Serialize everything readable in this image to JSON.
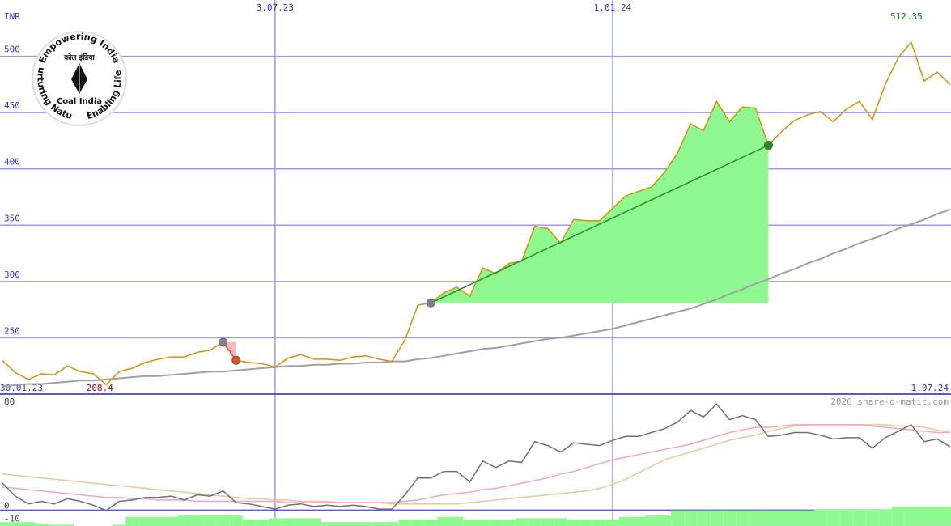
{
  "logo": {
    "top": "Empowering India",
    "right": "Enabling Life",
    "left": "Nurturing Nature",
    "name": "Coal India",
    "name_hindi": "कोल इंडिया"
  },
  "watermark": "2026 share-o-matic.com",
  "chart_data": [
    {
      "type": "line",
      "y_label": "INR",
      "categories": [
        "30.01.23",
        null,
        null,
        null,
        null,
        null,
        null,
        null,
        null,
        null,
        null,
        null,
        null,
        null,
        null,
        null,
        null,
        null,
        null,
        null,
        null,
        "3.07.23",
        null,
        null,
        null,
        null,
        null,
        null,
        null,
        null,
        null,
        null,
        null,
        null,
        null,
        null,
        null,
        null,
        null,
        null,
        null,
        null,
        null,
        null,
        null,
        null,
        null,
        "1.01.24",
        null,
        null,
        null,
        null,
        null,
        null,
        null,
        null,
        null,
        null,
        null,
        null,
        null,
        null,
        null,
        null,
        null,
        null,
        null,
        null,
        null,
        null,
        null,
        null,
        null,
        "1.07.24"
      ],
      "ylim": [
        200,
        550
      ],
      "yticks": [
        250,
        300,
        350,
        400,
        450,
        500
      ],
      "grid": true,
      "high_color": "#008000",
      "low_color": "#c00000",
      "series": [
        {
          "color": "#d4900a",
          "values": [
            230,
            219,
            213,
            218,
            217,
            225,
            220,
            218,
            208.4,
            220,
            223,
            228,
            231,
            233,
            233,
            237,
            239,
            246,
            230,
            228,
            227,
            224,
            232,
            235,
            231,
            231,
            230,
            233,
            234,
            231,
            229,
            248,
            279,
            281,
            290,
            295,
            287,
            312,
            307,
            316,
            318,
            349,
            347,
            334,
            355,
            354,
            354,
            365,
            376,
            380,
            384,
            397,
            414,
            440,
            434,
            460,
            442,
            455,
            454,
            421,
            433,
            443,
            448,
            451,
            442,
            453,
            460,
            444,
            475,
            499,
            512.35,
            478,
            486,
            475
          ]
        },
        {
          "color": "#a0a0a0",
          "values": [
            207,
            208,
            209,
            209,
            210,
            211,
            212,
            212,
            213,
            214,
            215,
            216,
            216,
            217,
            218,
            219,
            220,
            220,
            221,
            222,
            223,
            224,
            225,
            225,
            226,
            226,
            227,
            227,
            228,
            228,
            229,
            229,
            231,
            232,
            234,
            236,
            238,
            240,
            241,
            243,
            245,
            247,
            249,
            250,
            252,
            254,
            256,
            258,
            261,
            264,
            267,
            270,
            273,
            276,
            280,
            284,
            289,
            293,
            298,
            302,
            307,
            311,
            316,
            320,
            325,
            329,
            334,
            338,
            342,
            347,
            351,
            355,
            360,
            364
          ]
        }
      ],
      "trends": [
        {
          "color": "#e05020",
          "fill": "#ffb6c1",
          "values": [
            null,
            null,
            null,
            null,
            null,
            null,
            null,
            null,
            null,
            null,
            null,
            null,
            null,
            null,
            null,
            null,
            null,
            246,
            230,
            null,
            null,
            null,
            null,
            null,
            null,
            null,
            null,
            null,
            null,
            null,
            null,
            null,
            null,
            null,
            null,
            null,
            null,
            null,
            null,
            null,
            null,
            null,
            null,
            null,
            null,
            null,
            null,
            null,
            null,
            null,
            null,
            null,
            null,
            null,
            null,
            null,
            null,
            null,
            null,
            null,
            null,
            null,
            null,
            null,
            null,
            null,
            null,
            null,
            null,
            null,
            null,
            null,
            null,
            null
          ]
        },
        {
          "color": "#209020",
          "fill": "#90f890",
          "values": [
            null,
            null,
            null,
            null,
            null,
            null,
            null,
            null,
            null,
            null,
            null,
            null,
            null,
            null,
            null,
            null,
            null,
            null,
            null,
            null,
            null,
            null,
            null,
            null,
            null,
            null,
            null,
            null,
            null,
            null,
            null,
            null,
            null,
            281,
            null,
            null,
            null,
            null,
            null,
            null,
            null,
            null,
            null,
            null,
            null,
            null,
            null,
            null,
            null,
            null,
            null,
            null,
            null,
            null,
            null,
            null,
            null,
            null,
            null,
            421,
            null,
            null,
            null,
            null,
            null,
            null,
            null,
            null,
            null,
            null,
            null,
            null,
            null,
            null
          ]
        }
      ]
    },
    {
      "type": "line",
      "ylim": [
        -16,
        85
      ],
      "yticks": [
        80,
        0,
        -10
      ],
      "series": [
        {
          "type": "bar",
          "color": "#90f890",
          "values": [
            -13,
            -13,
            -13,
            -14,
            -15,
            -15,
            -16,
            -16,
            -16,
            -15,
            -9,
            -9,
            -9,
            -9,
            -8,
            -8,
            -8,
            -8,
            -8,
            -11,
            -11,
            -10,
            -10,
            -10,
            -10,
            -13,
            -13,
            -13,
            -13,
            -13,
            -13,
            -11,
            -11,
            -11,
            -9,
            -9,
            -11,
            -11,
            -11,
            -11,
            -10,
            -10,
            -10,
            -10,
            -11,
            -11,
            -11,
            -11,
            -9,
            -9,
            -8,
            -8,
            -4,
            -4,
            -4,
            -4,
            -4,
            -4,
            -4,
            -4,
            -4,
            -4,
            -4,
            -3,
            -3,
            -3,
            -3,
            -3,
            -3,
            -1,
            -1,
            -1,
            -1,
            -1
          ]
        },
        {
          "color": "#e8c898",
          "values": [
            24,
            23,
            22,
            21,
            20,
            19,
            18,
            17,
            16,
            15,
            14,
            13,
            12,
            11,
            10,
            9,
            8,
            7,
            6,
            5,
            5,
            4,
            4,
            3,
            3,
            3,
            2,
            2,
            2,
            2,
            1,
            1,
            1,
            1,
            1,
            1,
            2,
            3,
            4,
            5,
            6,
            7,
            8,
            9,
            10,
            11,
            13,
            16,
            20,
            25,
            30,
            35,
            38,
            41,
            44,
            47,
            50,
            52,
            54,
            57,
            59,
            61,
            62,
            62,
            62,
            62,
            62,
            62,
            62,
            61,
            61,
            60,
            58,
            56
          ]
        },
        {
          "color": "#f4a6b8",
          "values": [
            14,
            13,
            12,
            11,
            10,
            9,
            8,
            7,
            6,
            6,
            5,
            5,
            4,
            4,
            4,
            3,
            3,
            3,
            3,
            3,
            3,
            3,
            2,
            2,
            2,
            2,
            2,
            2,
            2,
            2,
            2,
            3,
            4,
            6,
            8,
            9,
            10,
            12,
            13,
            15,
            17,
            19,
            21,
            24,
            26,
            29,
            32,
            35,
            37,
            39,
            41,
            43,
            45,
            47,
            50,
            53,
            56,
            58,
            60,
            60,
            61,
            62,
            62,
            62,
            62,
            62,
            62,
            61,
            60,
            59,
            58,
            57,
            56,
            56
          ]
        },
        {
          "color": "#707070",
          "values": [
            17,
            7,
            1,
            3,
            1,
            5,
            3,
            0,
            -4,
            3,
            4,
            6,
            6,
            7,
            4,
            8,
            7,
            11,
            2,
            1,
            -1,
            -3,
            0,
            1,
            -1,
            0,
            -1,
            0,
            -1,
            -3,
            -3,
            8,
            21,
            21,
            26,
            26,
            18,
            34,
            29,
            34,
            33,
            49,
            46,
            41,
            48,
            47,
            46,
            50,
            53,
            53,
            56,
            59,
            64,
            73,
            68,
            78,
            66,
            69,
            66,
            53,
            54,
            56,
            56,
            54,
            51,
            52,
            52,
            44,
            52,
            57,
            62,
            49,
            51,
            45
          ]
        }
      ]
    }
  ]
}
